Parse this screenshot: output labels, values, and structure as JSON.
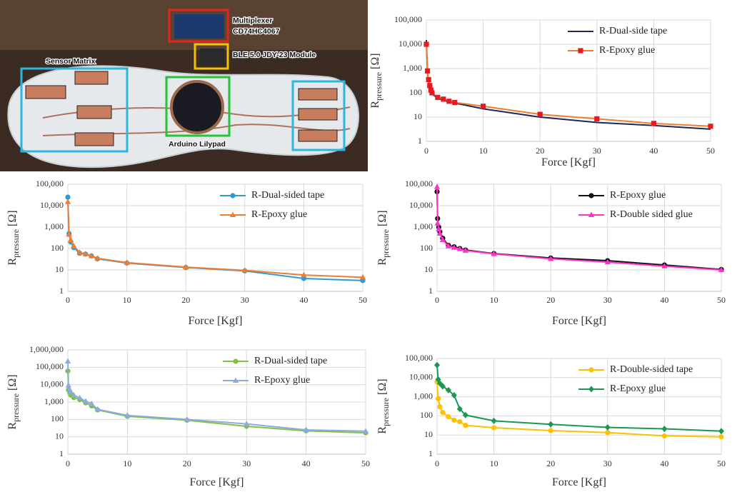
{
  "photo": {
    "labels": [
      "Multiplexer",
      "CD74HC4067",
      "BLE 5.0 JDY-23 Module",
      "Sensor Matrix",
      "Arduino Lilypad"
    ]
  },
  "chart_data": [
    {
      "type": "line",
      "log_y": true,
      "grid": true,
      "legend": "upper right",
      "x_label": "Force [Kgf]",
      "y_label": {
        "main": "R",
        "sub": "pressure",
        "unit": "[Ω]"
      },
      "x": [
        0,
        0.2,
        0.4,
        0.6,
        0.8,
        1,
        2,
        3,
        4,
        5,
        10,
        20,
        30,
        40,
        50
      ],
      "xlim": [
        0,
        50
      ],
      "xticks": [
        0,
        10,
        20,
        30,
        40,
        50
      ],
      "ylim": [
        1,
        100000
      ],
      "yticks": [
        1,
        10,
        100,
        {
          "value": 1000,
          "label": "1,000"
        },
        {
          "value": 10000,
          "label": "10,000"
        },
        {
          "value": 100000,
          "label": "100,000"
        }
      ],
      "series": [
        {
          "name": "R-Dual-side tape",
          "color": "#1f2859",
          "marker": "none",
          "values": [
            15000,
            700,
            300,
            180,
            120,
            90,
            60,
            50,
            42,
            38,
            22,
            10,
            6,
            4.5,
            3.2
          ]
        },
        {
          "name": "R-Epoxy glue",
          "color": "#ed7d31",
          "marker": "square",
          "marker_color": "#e8191f",
          "values": [
            10000,
            800,
            350,
            200,
            130,
            100,
            65,
            55,
            45,
            40,
            28,
            13,
            8.5,
            5.5,
            4.2
          ]
        }
      ]
    },
    {
      "type": "line",
      "log_y": true,
      "grid": true,
      "legend": "upper right",
      "x_label": "Force [Kgf]",
      "y_label": {
        "main": "R",
        "sub": "pressure",
        "unit": "[Ω]"
      },
      "x": [
        0,
        0.2,
        0.5,
        1,
        2,
        3,
        4,
        5,
        10,
        20,
        30,
        40,
        50
      ],
      "xlim": [
        0,
        50
      ],
      "xticks": [
        0,
        10,
        20,
        30,
        40,
        50
      ],
      "ylim": [
        1,
        100000
      ],
      "yticks": [
        1,
        10,
        100,
        {
          "value": 1000,
          "label": "1,000"
        },
        {
          "value": 10000,
          "label": "10,000"
        },
        {
          "value": 100000,
          "label": "100,000"
        }
      ],
      "series": [
        {
          "name": "R-Dual-sided tape",
          "color": "#2e9bd6",
          "marker": "circle",
          "values": [
            25000,
            500,
            200,
            110,
            60,
            55,
            45,
            33,
            21,
            13,
            9,
            4,
            3.2
          ]
        },
        {
          "name": "R-Epoxy glue",
          "color": "#ed7d31",
          "marker": "triangle",
          "values": [
            15000,
            450,
            250,
            130,
            65,
            55,
            45,
            35,
            22,
            13.5,
            9.5,
            5.8,
            4.5
          ]
        }
      ]
    },
    {
      "type": "line",
      "log_y": true,
      "grid": true,
      "legend": "upper right",
      "x_label": "Force [Kgf]",
      "y_label": {
        "main": "R",
        "sub": "pressure",
        "unit": "[Ω]"
      },
      "x": [
        0,
        0.1,
        0.3,
        0.5,
        1,
        2,
        3,
        4,
        5,
        10,
        20,
        30,
        40,
        50
      ],
      "xlim": [
        0,
        50
      ],
      "xticks": [
        0,
        10,
        20,
        30,
        40,
        50
      ],
      "ylim": [
        1,
        100000
      ],
      "yticks": [
        1,
        10,
        100,
        {
          "value": 1000,
          "label": "1,000"
        },
        {
          "value": 10000,
          "label": "10,000"
        },
        {
          "value": 100000,
          "label": "100,000"
        }
      ],
      "series": [
        {
          "name": "R-Epoxy glue",
          "color": "#111111",
          "marker": "circle",
          "values": [
            45000,
            2500,
            1000,
            600,
            300,
            140,
            120,
            100,
            85,
            58,
            36,
            27,
            17,
            10.5
          ]
        },
        {
          "name": "R-Double sided glue",
          "color": "#ff33cc",
          "marker": "triangle",
          "values": [
            75000,
            1500,
            800,
            500,
            250,
            130,
            110,
            95,
            80,
            56,
            33,
            23,
            15,
            10
          ]
        }
      ]
    },
    {
      "type": "line",
      "log_y": true,
      "grid": true,
      "legend": "upper right",
      "x_label": "Force [Kgf]",
      "y_label": {
        "main": "R",
        "sub": "pressure",
        "unit": "[Ω]"
      },
      "x": [
        0,
        0.1,
        0.3,
        0.5,
        1,
        2,
        3,
        4,
        5,
        10,
        20,
        30,
        40,
        50
      ],
      "xlim": [
        0,
        50
      ],
      "xticks": [
        0,
        10,
        20,
        30,
        40,
        50
      ],
      "ylim": [
        1,
        1000000
      ],
      "yticks": [
        1,
        10,
        100,
        {
          "value": 1000,
          "label": "1,000"
        },
        {
          "value": 10000,
          "label": "10,000"
        },
        {
          "value": 100000,
          "label": "100,000"
        },
        {
          "value": 1000000,
          "label": "1,000,000"
        }
      ],
      "series": [
        {
          "name": "R-Dual-sided tape",
          "color": "#7dc242",
          "marker": "circle",
          "values": [
            60000,
            5000,
            3500,
            2500,
            1800,
            1400,
            900,
            600,
            350,
            150,
            90,
            40,
            22,
            17
          ]
        },
        {
          "name": "R-Epoxy glue",
          "color": "#8faadc",
          "marker": "triangle",
          "values": [
            220000,
            9000,
            5000,
            4000,
            2500,
            1700,
            1100,
            800,
            380,
            170,
            100,
            55,
            25,
            21
          ]
        }
      ]
    },
    {
      "type": "line",
      "log_y": true,
      "grid": true,
      "legend": "upper right",
      "x_label": "Force [Kgf]",
      "y_label": {
        "main": "R",
        "sub": "pressure",
        "unit": "[Ω]"
      },
      "x": [
        0,
        0.2,
        0.5,
        1,
        2,
        3,
        4,
        5,
        10,
        20,
        30,
        40,
        50
      ],
      "xlim": [
        0,
        50
      ],
      "xticks": [
        0,
        10,
        20,
        30,
        40,
        50
      ],
      "ylim": [
        1,
        100000
      ],
      "yticks": [
        1,
        10,
        100,
        {
          "value": 1000,
          "label": "1,000"
        },
        {
          "value": 10000,
          "label": "10,000"
        },
        {
          "value": 100000,
          "label": "100,000"
        }
      ],
      "series": [
        {
          "name": "R-Double-sided tape",
          "color": "#ffc000",
          "marker": "circle",
          "values": [
            6000,
            800,
            300,
            150,
            90,
            60,
            50,
            32,
            24,
            17,
            13.5,
            9,
            8
          ]
        },
        {
          "name": "R-Epoxy glue",
          "color": "#1a9850",
          "marker": "diamond",
          "values": [
            45000,
            8000,
            5000,
            3500,
            2200,
            1200,
            230,
            110,
            55,
            36,
            25,
            21,
            16
          ]
        }
      ]
    }
  ]
}
